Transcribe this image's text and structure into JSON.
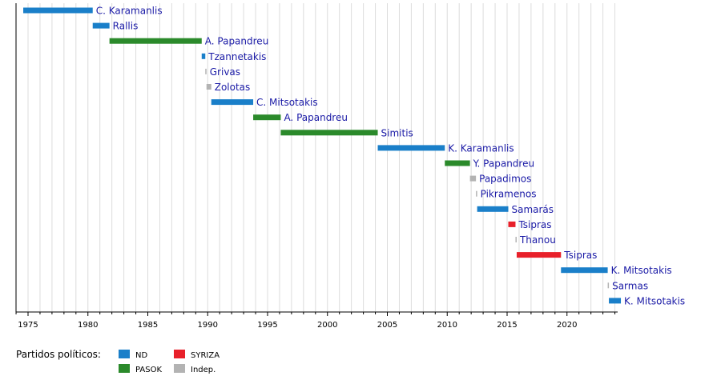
{
  "chart_data": {
    "type": "bar",
    "orientation": "horizontal-timeline",
    "xlim": [
      1974,
      2024.5
    ],
    "x_ticks": [
      1975,
      1980,
      1985,
      1990,
      1995,
      2000,
      2005,
      2010,
      2015,
      2020
    ],
    "grid": "vertical, yearly",
    "legend": {
      "title": "Partidos políticos:",
      "position": "bottom-left",
      "entries": [
        {
          "name": "ND",
          "color": "#1a7fc9"
        },
        {
          "name": "SYRIZA",
          "color": "#e8202a"
        },
        {
          "name": "PASOK",
          "color": "#2b8a2b"
        },
        {
          "name": "Indep.",
          "color": "#b3b3b3"
        }
      ]
    },
    "series": [
      {
        "name": "C. Karamanlis",
        "party": "ND",
        "start": 1974.6,
        "end": 1980.4
      },
      {
        "name": "Rallis",
        "party": "ND",
        "start": 1980.4,
        "end": 1981.8
      },
      {
        "name": "A. Papandreu",
        "party": "PASOK",
        "start": 1981.8,
        "end": 1989.5
      },
      {
        "name": "Tzannetakis",
        "party": "ND",
        "start": 1989.5,
        "end": 1989.8
      },
      {
        "name": "Grivas",
        "party": "Indep.",
        "start": 1989.8,
        "end": 1989.9
      },
      {
        "name": "Zolotas",
        "party": "Indep.",
        "start": 1989.9,
        "end": 1990.3
      },
      {
        "name": "C. Mitsotakis",
        "party": "ND",
        "start": 1990.3,
        "end": 1993.8
      },
      {
        "name": "A. Papandreu",
        "party": "PASOK",
        "start": 1993.8,
        "end": 1996.1
      },
      {
        "name": "Simitis",
        "party": "PASOK",
        "start": 1996.1,
        "end": 2004.2
      },
      {
        "name": "K. Karamanlis",
        "party": "ND",
        "start": 2004.2,
        "end": 2009.8
      },
      {
        "name": "Y. Papandreu",
        "party": "PASOK",
        "start": 2009.8,
        "end": 2011.9
      },
      {
        "name": "Papadimos",
        "party": "Indep.",
        "start": 2011.9,
        "end": 2012.4
      },
      {
        "name": "Pikramenos",
        "party": "Indep.",
        "start": 2012.4,
        "end": 2012.5
      },
      {
        "name": "Samarás",
        "party": "ND",
        "start": 2012.5,
        "end": 2015.1
      },
      {
        "name": "Tsipras",
        "party": "SYRIZA",
        "start": 2015.1,
        "end": 2015.7
      },
      {
        "name": "Thanou",
        "party": "Indep.",
        "start": 2015.7,
        "end": 2015.8
      },
      {
        "name": "Tsipras",
        "party": "SYRIZA",
        "start": 2015.8,
        "end": 2019.5
      },
      {
        "name": "K. Mitsotakis",
        "party": "ND",
        "start": 2019.5,
        "end": 2023.4
      },
      {
        "name": "Sarmas",
        "party": "Indep.",
        "start": 2023.4,
        "end": 2023.5
      },
      {
        "name": "K. Mitsotakis",
        "party": "ND",
        "start": 2023.5,
        "end": 2024.5
      }
    ]
  }
}
